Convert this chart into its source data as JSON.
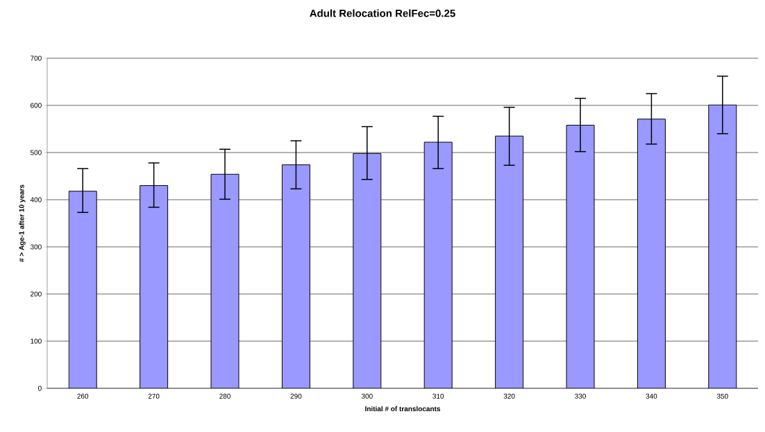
{
  "chart_data": {
    "type": "bar",
    "title": "Adult Relocation RelFec=0.25",
    "xlabel": "Initial # of translocants",
    "ylabel": "# > Age-1 after 10 years",
    "categories": [
      "260",
      "270",
      "280",
      "290",
      "300",
      "310",
      "320",
      "330",
      "340",
      "350"
    ],
    "values": [
      418,
      430,
      454,
      474,
      498,
      522,
      535,
      558,
      571,
      601
    ],
    "errors": [
      [
        373,
        466
      ],
      [
        384,
        478
      ],
      [
        401,
        507
      ],
      [
        423,
        525
      ],
      [
        443,
        555
      ],
      [
        466,
        577
      ],
      [
        473,
        596
      ],
      [
        502,
        615
      ],
      [
        518,
        625
      ],
      [
        540,
        662
      ]
    ],
    "color": "#9999ff",
    "ylim": [
      0,
      700
    ],
    "yticks": [
      0,
      100,
      200,
      300,
      400,
      500,
      600,
      700
    ],
    "grid": "y"
  }
}
